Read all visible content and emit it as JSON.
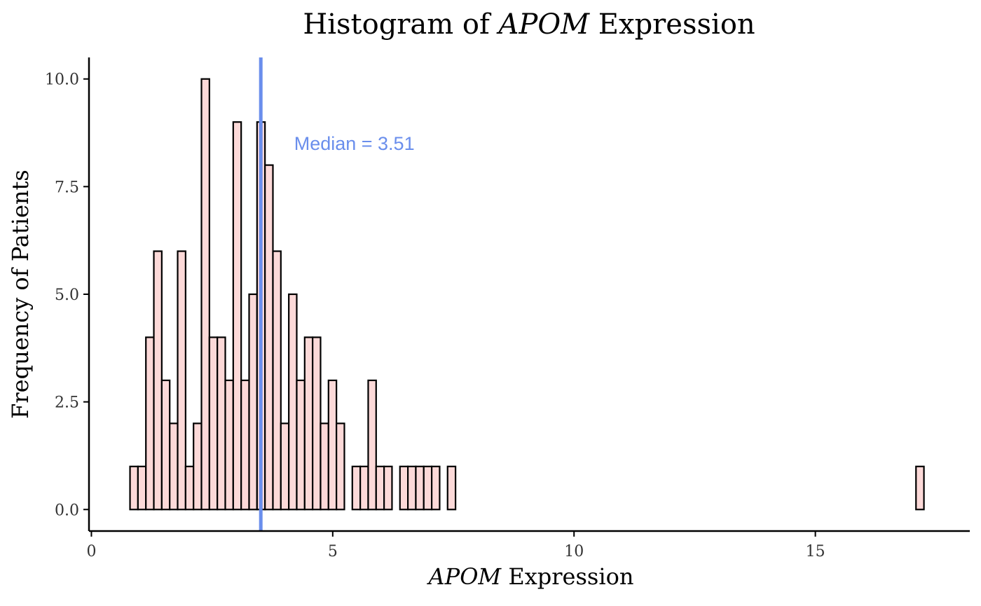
{
  "chart_data": {
    "type": "bar",
    "title": {
      "prefix": "Histogram of ",
      "gene": "APOM",
      "suffix": " Expression"
    },
    "xlabel": {
      "gene": "APOM",
      "suffix": " Expression"
    },
    "ylabel": "Frequency of Patients",
    "xlim": [
      -0.05,
      18.2
    ],
    "ylim": [
      -0.5,
      10.5
    ],
    "x_ticks": [
      {
        "value": 0,
        "label": "0"
      },
      {
        "value": 5,
        "label": "5"
      },
      {
        "value": 10,
        "label": "10"
      },
      {
        "value": 15,
        "label": "15"
      }
    ],
    "y_ticks": [
      {
        "value": 0,
        "label": "0.0"
      },
      {
        "value": 2.5,
        "label": "2.5"
      },
      {
        "value": 5,
        "label": "5.0"
      },
      {
        "value": 7.5,
        "label": "7.5"
      },
      {
        "value": 10,
        "label": "10.0"
      }
    ],
    "bin_start": 0.8,
    "bin_width": 0.1645,
    "counts": [
      1,
      1,
      4,
      6,
      3,
      2,
      6,
      1,
      2,
      10,
      4,
      4,
      3,
      9,
      3,
      5,
      9,
      8,
      6,
      2,
      5,
      3,
      4,
      4,
      2,
      3,
      2,
      0,
      1,
      1,
      3,
      1,
      1,
      0,
      1,
      1,
      1,
      1,
      1,
      0,
      1,
      0,
      0,
      0,
      0,
      0,
      0,
      0,
      0,
      0,
      0,
      0,
      0,
      0,
      0,
      0,
      0,
      0,
      0,
      0,
      0,
      0,
      0,
      0,
      0,
      0,
      0,
      0,
      0,
      0,
      0,
      0,
      0,
      0,
      0,
      0,
      0,
      0,
      0,
      0,
      0,
      0,
      0,
      0,
      0,
      0,
      0,
      0,
      0,
      0,
      0,
      0,
      0,
      0,
      0,
      0,
      0,
      0,
      0,
      1
    ],
    "median": {
      "value": 3.51,
      "label": "Median =  3.51",
      "color": "#6a8eec"
    },
    "bar_fill": "#fcd9d8",
    "bar_stroke": "#000000",
    "grid": false
  }
}
